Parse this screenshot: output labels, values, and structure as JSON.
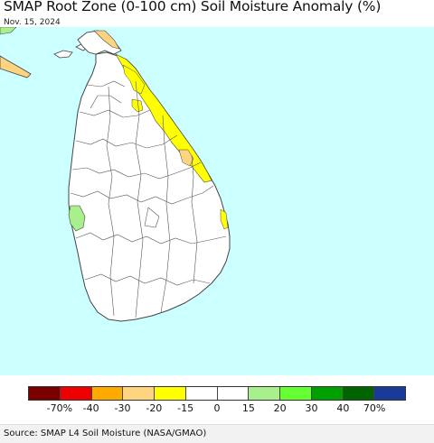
{
  "header": {
    "title": "SMAP Root Zone (0-100 cm) Soil Moisture Anomaly (%)",
    "date": "Nov. 15, 2024"
  },
  "colors": {
    "ocean": "#ccffff",
    "land": "#ffffff",
    "boundary": "#444444",
    "dry_yellow": "#ffff00",
    "dry_tan": "#ffd480",
    "wet_green": "#a8f08c"
  },
  "legend": {
    "swatches": [
      {
        "color": "#7a0000"
      },
      {
        "color": "#ee0000"
      },
      {
        "color": "#ffaa00"
      },
      {
        "color": "#ffd480"
      },
      {
        "color": "#ffff00"
      },
      {
        "color": "#ffffff"
      },
      {
        "color": "#ffffff"
      },
      {
        "color": "#a8f08c"
      },
      {
        "color": "#66ff33"
      },
      {
        "color": "#00a000"
      },
      {
        "color": "#006400"
      },
      {
        "color": "#1a3a99"
      }
    ],
    "ticks": [
      {
        "label": "-70%",
        "pos": 1
      },
      {
        "label": "-40",
        "pos": 2
      },
      {
        "label": "-30",
        "pos": 3
      },
      {
        "label": "-20",
        "pos": 4
      },
      {
        "label": "-15",
        "pos": 5
      },
      {
        "label": "0",
        "pos": 6
      },
      {
        "label": "15",
        "pos": 7
      },
      {
        "label": "20",
        "pos": 8
      },
      {
        "label": "30",
        "pos": 9
      },
      {
        "label": "40",
        "pos": 10
      },
      {
        "label": "70%",
        "pos": 11
      }
    ]
  },
  "footer": {
    "source": "Source: SMAP L4 Soil Moisture (NASA/GMAO)"
  }
}
